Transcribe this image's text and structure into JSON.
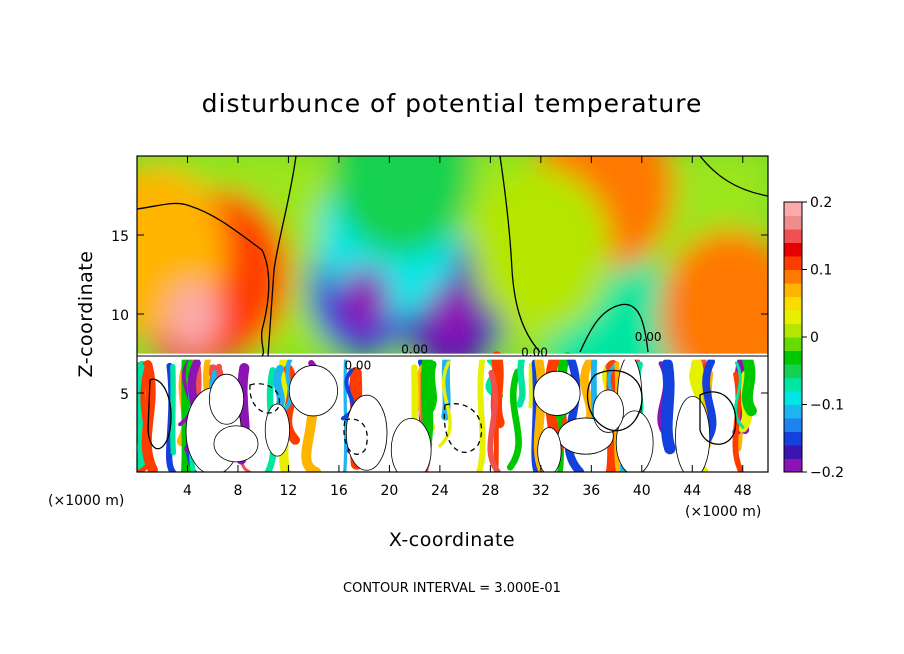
{
  "chart_data": {
    "type": "heatmap",
    "title": "disturbunce of potential temperature",
    "xlabel": "X-coordinate",
    "ylabel": "Z-coordinate",
    "x_unit_left": "(×1000 m)",
    "x_unit_right": "(×1000 m)",
    "footer": "CONTOUR INTERVAL = 3.000E-01",
    "xlim": [
      0,
      50
    ],
    "ylim": [
      0,
      20
    ],
    "xticks": [
      4,
      8,
      12,
      16,
      20,
      24,
      28,
      32,
      36,
      40,
      44,
      48
    ],
    "yticks": [
      5,
      10,
      15
    ],
    "colorbar": {
      "range": [
        -0.2,
        0.2
      ],
      "tick_values": [
        0.2,
        0.1,
        0,
        -0.1,
        -0.2
      ],
      "tick_labels": [
        "0.2",
        "0.1",
        "0",
        "−0.1",
        "−0.2"
      ],
      "colors": [
        "#8c14b4",
        "#3c14b4",
        "#1440dc",
        "#1e82f0",
        "#1eb4f0",
        "#00e6e6",
        "#00e6a0",
        "#14d250",
        "#00c800",
        "#64dc00",
        "#b4e600",
        "#e6f000",
        "#fadc00",
        "#ffb400",
        "#ff7800",
        "#ff3c00",
        "#e60000",
        "#f05050",
        "#f08c8c",
        "#faaaaa"
      ]
    },
    "contour_labels": [
      {
        "text": "0.00",
        "x": 22,
        "z": 7.5
      },
      {
        "text": "0.00",
        "x": 31.5,
        "z": 7.3
      },
      {
        "text": "0.00",
        "x": 17.5,
        "z": 6.5
      },
      {
        "text": "0.00",
        "x": 40.5,
        "z": 8.3
      }
    ],
    "interface_z": 7.3,
    "upper_anomalies": [
      {
        "x": 4.5,
        "z": 10.5,
        "value": 0.15
      },
      {
        "x": 6.5,
        "z": 12.5,
        "value": 0.1
      },
      {
        "x": 1.5,
        "z": 14,
        "value": 0.06
      },
      {
        "x": 18,
        "z": 11.5,
        "value": -0.16
      },
      {
        "x": 25,
        "z": 10.5,
        "value": -0.17
      },
      {
        "x": 20,
        "z": 15,
        "value": -0.1
      },
      {
        "x": 21,
        "z": 19,
        "value": -0.06
      },
      {
        "x": 38,
        "z": 8.5,
        "value": -0.07
      },
      {
        "x": 47,
        "z": 10,
        "value": 0.09
      },
      {
        "x": 37,
        "z": 18,
        "value": 0.08
      },
      {
        "x": 32,
        "z": 14,
        "value": 0.02
      }
    ]
  }
}
